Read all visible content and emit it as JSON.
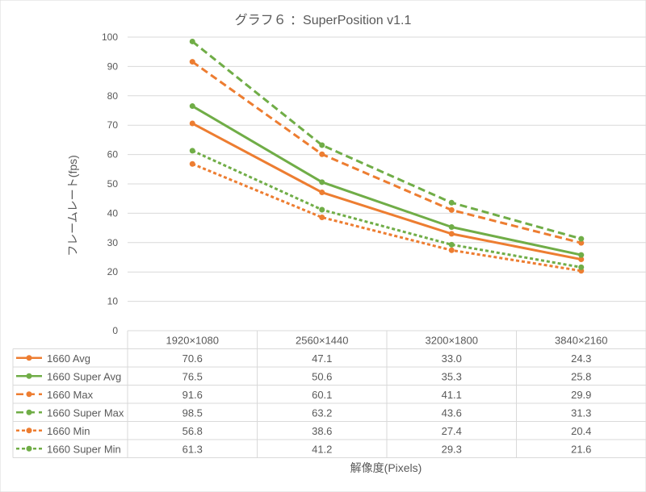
{
  "chart_data": {
    "type": "line",
    "title": "グラフ６ ：SuperPosition v1.1",
    "xlabel": "解像度(Pixels)",
    "ylabel": "フレームレート(fps)",
    "ylim": [
      0,
      100
    ],
    "y_ticks": [
      "0",
      "10",
      "20",
      "30",
      "40",
      "50",
      "60",
      "70",
      "80",
      "90",
      "100"
    ],
    "grid": true,
    "legend": "data-table",
    "categories": [
      "1920×1080",
      "2560×1440",
      "3200×1800",
      "3840×2160"
    ],
    "series": [
      {
        "name": "1660 Avg",
        "color": "#ED7D31",
        "style": "solid",
        "values": [
          70.6,
          47.1,
          33.0,
          24.3
        ],
        "labels": [
          "70.6",
          "47.1",
          "33.0",
          "24.3"
        ]
      },
      {
        "name": "1660 Super Avg",
        "color": "#70AD47",
        "style": "solid",
        "values": [
          76.5,
          50.6,
          35.3,
          25.8
        ],
        "labels": [
          "76.5",
          "50.6",
          "35.3",
          "25.8"
        ]
      },
      {
        "name": "1660 Max",
        "color": "#ED7D31",
        "style": "long-dash",
        "values": [
          91.6,
          60.1,
          41.1,
          29.9
        ],
        "labels": [
          "91.6",
          "60.1",
          "41.1",
          "29.9"
        ]
      },
      {
        "name": "1660 Super Max",
        "color": "#70AD47",
        "style": "long-dash",
        "values": [
          98.5,
          63.2,
          43.6,
          31.3
        ],
        "labels": [
          "98.5",
          "63.2",
          "43.6",
          "31.3"
        ]
      },
      {
        "name": "1660 Min",
        "color": "#ED7D31",
        "style": "short-dash",
        "values": [
          56.8,
          38.6,
          27.4,
          20.4
        ],
        "labels": [
          "56.8",
          "38.6",
          "27.4",
          "20.4"
        ]
      },
      {
        "name": "1660 Super Min",
        "color": "#70AD47",
        "style": "short-dash",
        "values": [
          61.3,
          41.2,
          29.3,
          21.6
        ],
        "labels": [
          "61.3",
          "41.2",
          "29.3",
          "21.6"
        ]
      }
    ]
  }
}
